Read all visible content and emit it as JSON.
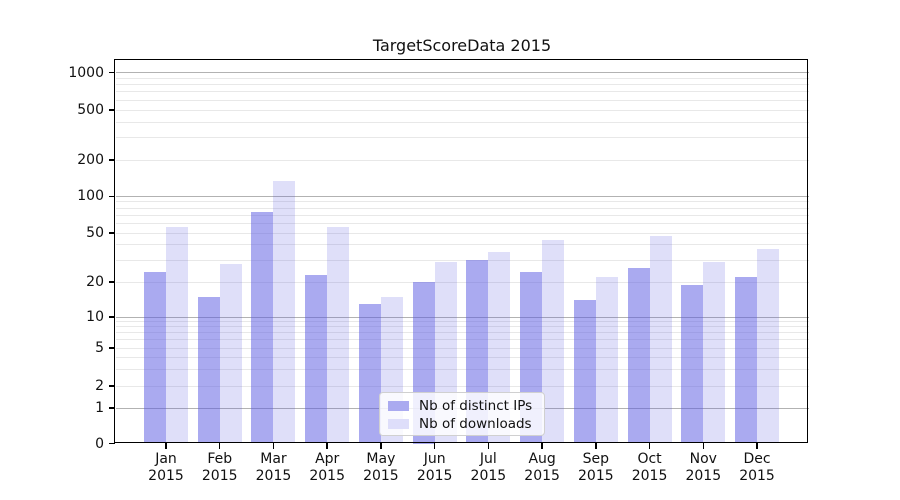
{
  "chart_data": {
    "type": "bar",
    "title": "TargetScoreData 2015",
    "year": "2015",
    "categories": [
      "Jan",
      "Feb",
      "Mar",
      "Apr",
      "May",
      "Jun",
      "Jul",
      "Aug",
      "Sep",
      "Oct",
      "Nov",
      "Dec"
    ],
    "series": [
      {
        "name": "Nb of distinct IPs",
        "color": "#aaaaf0",
        "fill": "rgba(85,85,225,0.5)",
        "values": [
          24,
          15,
          75,
          23,
          13,
          20,
          30,
          24,
          14,
          26,
          19,
          22
        ]
      },
      {
        "name": "Nb of downloads",
        "color": "#dedefa",
        "fill": "rgba(85,85,225,0.19)",
        "values": [
          56,
          28,
          135,
          56,
          15,
          29,
          35,
          44,
          22,
          47,
          29,
          37
        ]
      }
    ],
    "xlabel": "",
    "ylabel": "",
    "yscale": "symlog",
    "yticks": [
      0,
      1,
      2,
      5,
      10,
      20,
      50,
      100,
      200,
      500,
      1000
    ],
    "ylim": [
      0,
      1300
    ],
    "grid": true,
    "legend_position": "lower-center"
  },
  "colors": {
    "bar_distinct_ips": "#aaaaf0",
    "bar_downloads": "#dedefa",
    "grid_major": "#b2b2b2",
    "grid_minor": "#e8e8e8",
    "axis": "#000000",
    "text": "#111111",
    "legend_border": "#d0d0d0",
    "background": "#ffffff"
  }
}
